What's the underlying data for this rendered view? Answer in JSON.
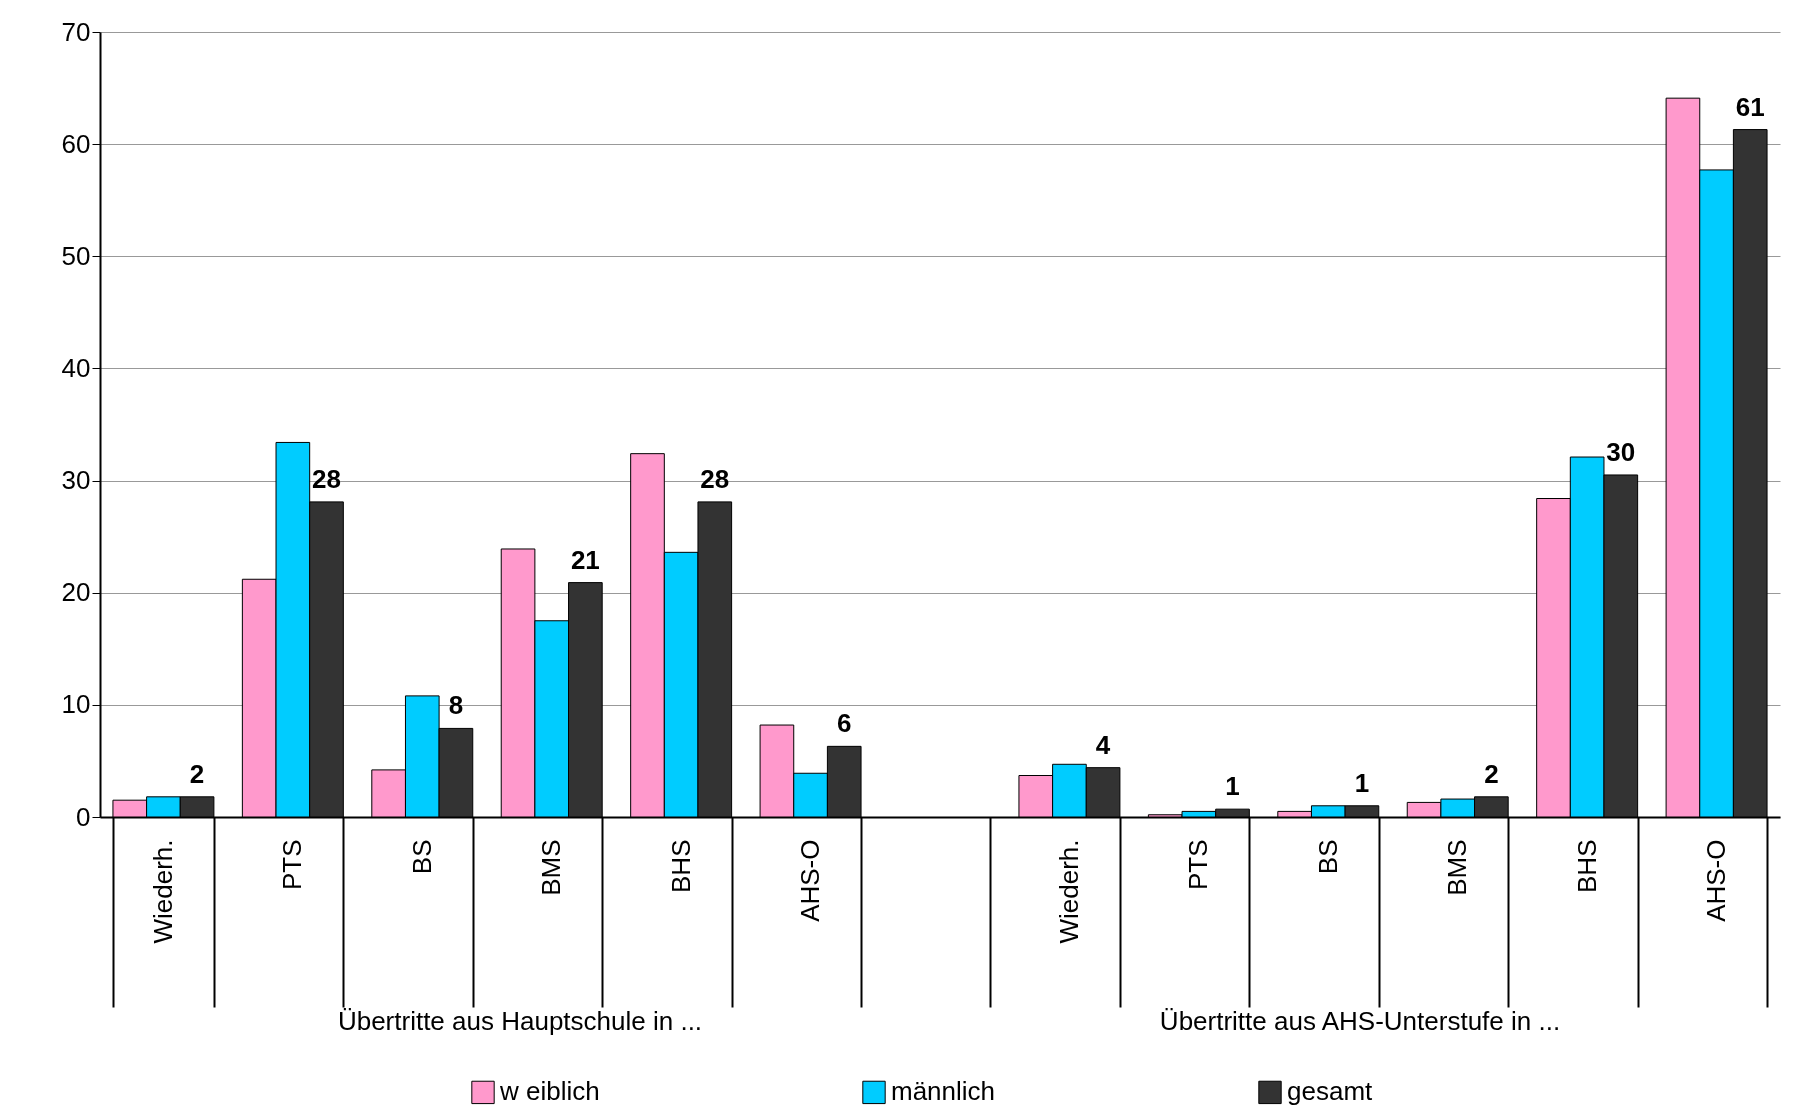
{
  "chart_data": {
    "type": "bar",
    "categories": [
      "Wiederh.",
      "PTS",
      "BS",
      "BMS",
      "BHS",
      "AHS-O",
      null,
      "Wiederh.",
      "PTS",
      "BS",
      "BMS",
      "BHS",
      "AHS-O"
    ],
    "series": [
      {
        "name": "w eiblich",
        "color": "#ff99cc",
        "values": [
          1.5,
          21.2,
          4.2,
          23.9,
          32.4,
          8.2,
          null,
          3.7,
          0.2,
          0.5,
          1.3,
          28.4,
          64.1
        ]
      },
      {
        "name": "männlich",
        "color": "#00ccff",
        "values": [
          1.8,
          33.4,
          10.8,
          17.5,
          23.6,
          3.9,
          null,
          4.7,
          0.5,
          1.0,
          1.6,
          32.1,
          57.7
        ]
      },
      {
        "name": "gesamt",
        "color": "#333333",
        "values": [
          1.8,
          28.1,
          7.9,
          20.9,
          28.1,
          6.3,
          null,
          4.4,
          0.7,
          1.0,
          1.8,
          30.5,
          61.3
        ],
        "value_labels": [
          "2",
          "28",
          "8",
          "21",
          "28",
          "6",
          null,
          "4",
          "1",
          "1",
          "2",
          "30",
          "61"
        ]
      }
    ],
    "ylim": [
      0,
      70
    ],
    "yticks": [
      0,
      10,
      20,
      30,
      40,
      50,
      60,
      70
    ],
    "grid": "y",
    "legend": "bottom",
    "annotations": [
      "Übertritte aus Hauptschule in ...",
      "Übertritte aus AHS-Unterstufe in ..."
    ]
  }
}
